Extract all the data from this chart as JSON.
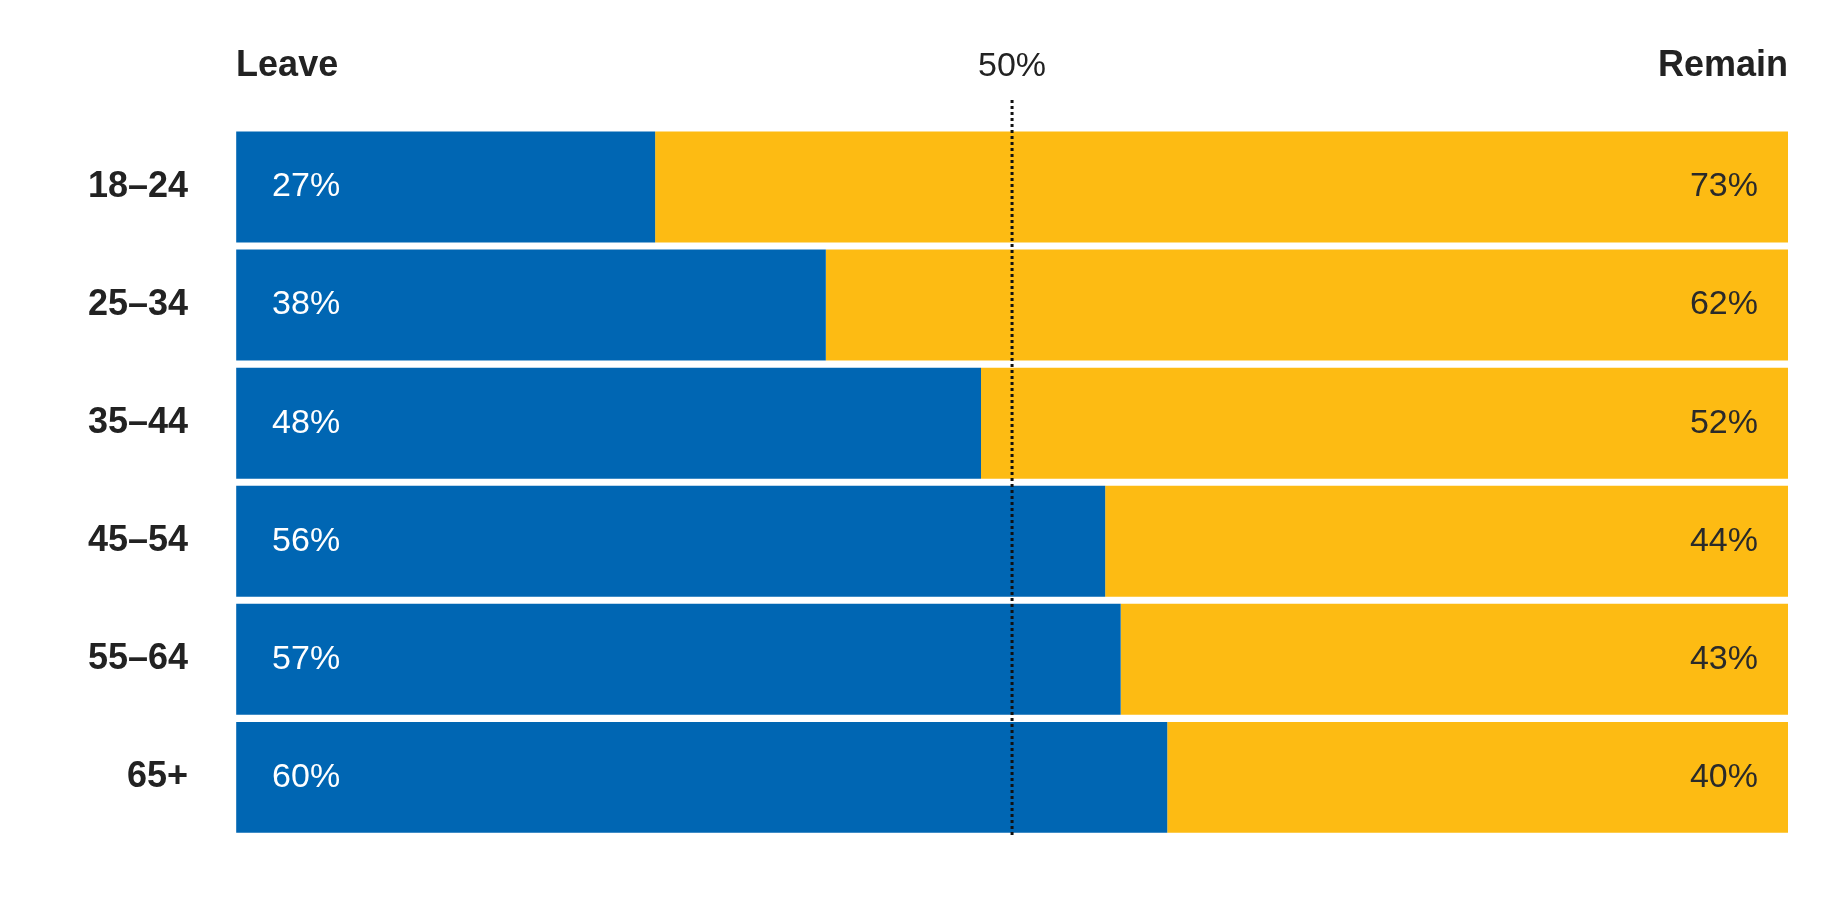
{
  "chart_data": {
    "type": "bar",
    "orientation": "horizontal",
    "stacked": true,
    "categories": [
      "18–24",
      "25–34",
      "35–44",
      "45–54",
      "55–64",
      "65+"
    ],
    "series": [
      {
        "name": "Leave",
        "color": "#0066b3",
        "values": [
          27,
          38,
          48,
          56,
          57,
          60
        ],
        "value_labels": [
          "27%",
          "38%",
          "48%",
          "56%",
          "57%",
          "60%"
        ]
      },
      {
        "name": "Remain",
        "color": "#fdbb13",
        "values": [
          73,
          62,
          52,
          44,
          43,
          40
        ],
        "value_labels": [
          "73%",
          "62%",
          "52%",
          "44%",
          "43%",
          "40%"
        ]
      }
    ],
    "legend": false,
    "ref_lines": [
      {
        "axis": "x",
        "value": 50,
        "label": "50%",
        "color": "#111111",
        "line_style": "dotted"
      }
    ]
  }
}
